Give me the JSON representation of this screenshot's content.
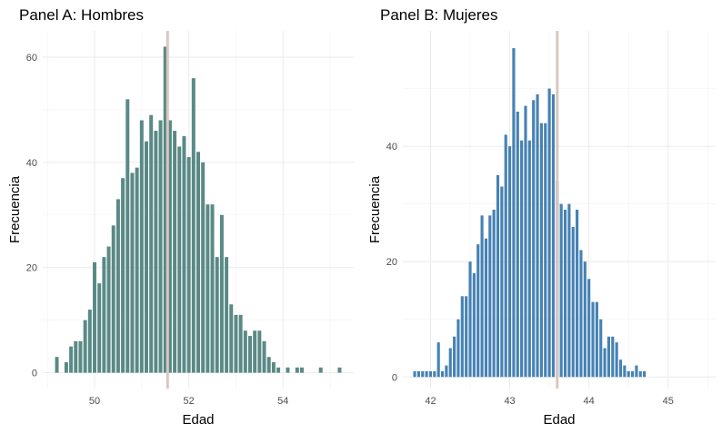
{
  "chart_data": [
    {
      "type": "bar",
      "title": "Panel A: Hombres",
      "xlabel": "Edad",
      "ylabel": "Frecuencia",
      "xlim": [
        48.9,
        55.5
      ],
      "ylim": [
        -3,
        65
      ],
      "xticks": [
        50,
        52,
        54
      ],
      "yticks": [
        0,
        20,
        40,
        60
      ],
      "grid": true,
      "bar_color": "#5a8a85",
      "reference_line": {
        "x": 51.55,
        "color": "#d9c7c0"
      },
      "bins": [
        {
          "x": 49.2,
          "count": 3
        },
        {
          "x": 49.3,
          "count": 0
        },
        {
          "x": 49.4,
          "count": 2
        },
        {
          "x": 49.5,
          "count": 5
        },
        {
          "x": 49.6,
          "count": 6
        },
        {
          "x": 49.7,
          "count": 6
        },
        {
          "x": 49.8,
          "count": 10
        },
        {
          "x": 49.9,
          "count": 12
        },
        {
          "x": 50.0,
          "count": 21
        },
        {
          "x": 50.1,
          "count": 17
        },
        {
          "x": 50.2,
          "count": 22
        },
        {
          "x": 50.3,
          "count": 24
        },
        {
          "x": 50.4,
          "count": 28
        },
        {
          "x": 50.5,
          "count": 33
        },
        {
          "x": 50.6,
          "count": 37
        },
        {
          "x": 50.7,
          "count": 52
        },
        {
          "x": 50.8,
          "count": 38
        },
        {
          "x": 50.9,
          "count": 39
        },
        {
          "x": 51.0,
          "count": 48
        },
        {
          "x": 51.1,
          "count": 44
        },
        {
          "x": 51.2,
          "count": 49
        },
        {
          "x": 51.3,
          "count": 46
        },
        {
          "x": 51.4,
          "count": 48
        },
        {
          "x": 51.5,
          "count": 62
        },
        {
          "x": 51.6,
          "count": 48
        },
        {
          "x": 51.7,
          "count": 46
        },
        {
          "x": 51.8,
          "count": 43
        },
        {
          "x": 51.9,
          "count": 45
        },
        {
          "x": 52.0,
          "count": 41
        },
        {
          "x": 52.1,
          "count": 56
        },
        {
          "x": 52.2,
          "count": 42
        },
        {
          "x": 52.3,
          "count": 40
        },
        {
          "x": 52.4,
          "count": 32
        },
        {
          "x": 52.5,
          "count": 32
        },
        {
          "x": 52.6,
          "count": 22
        },
        {
          "x": 52.7,
          "count": 30
        },
        {
          "x": 52.8,
          "count": 22
        },
        {
          "x": 52.9,
          "count": 13
        },
        {
          "x": 53.0,
          "count": 11
        },
        {
          "x": 53.1,
          "count": 11
        },
        {
          "x": 53.2,
          "count": 8
        },
        {
          "x": 53.3,
          "count": 7
        },
        {
          "x": 53.4,
          "count": 8
        },
        {
          "x": 53.5,
          "count": 8
        },
        {
          "x": 53.6,
          "count": 6
        },
        {
          "x": 53.7,
          "count": 3
        },
        {
          "x": 53.8,
          "count": 2
        },
        {
          "x": 53.9,
          "count": 1
        },
        {
          "x": 54.0,
          "count": 0
        },
        {
          "x": 54.1,
          "count": 1
        },
        {
          "x": 54.2,
          "count": 0
        },
        {
          "x": 54.3,
          "count": 1
        },
        {
          "x": 54.4,
          "count": 1
        },
        {
          "x": 54.5,
          "count": 0
        },
        {
          "x": 54.6,
          "count": 0
        },
        {
          "x": 54.7,
          "count": 0
        },
        {
          "x": 54.8,
          "count": 1
        },
        {
          "x": 54.9,
          "count": 0
        },
        {
          "x": 55.0,
          "count": 0
        },
        {
          "x": 55.1,
          "count": 0
        },
        {
          "x": 55.2,
          "count": 1
        }
      ]
    },
    {
      "type": "bar",
      "title": "Panel B: Mujeres",
      "xlabel": "Edad",
      "ylabel": "Frecuencia",
      "xlim": [
        41.65,
        45.6
      ],
      "ylim": [
        -2,
        60
      ],
      "xticks": [
        42,
        43,
        44,
        45
      ],
      "yticks": [
        0,
        20,
        40
      ],
      "grid": true,
      "bar_color": "#4682b4",
      "reference_line": {
        "x": 43.6,
        "color": "#d9c7c0"
      },
      "bins": [
        {
          "x": 41.8,
          "count": 1
        },
        {
          "x": 41.85,
          "count": 1
        },
        {
          "x": 41.9,
          "count": 1
        },
        {
          "x": 41.95,
          "count": 1
        },
        {
          "x": 42.0,
          "count": 1
        },
        {
          "x": 42.05,
          "count": 1
        },
        {
          "x": 42.1,
          "count": 6
        },
        {
          "x": 42.15,
          "count": 1
        },
        {
          "x": 42.2,
          "count": 2
        },
        {
          "x": 42.25,
          "count": 5
        },
        {
          "x": 42.3,
          "count": 7
        },
        {
          "x": 42.35,
          "count": 10
        },
        {
          "x": 42.4,
          "count": 14
        },
        {
          "x": 42.45,
          "count": 14
        },
        {
          "x": 42.5,
          "count": 20
        },
        {
          "x": 42.55,
          "count": 18
        },
        {
          "x": 42.6,
          "count": 23
        },
        {
          "x": 42.65,
          "count": 28
        },
        {
          "x": 42.7,
          "count": 24
        },
        {
          "x": 42.75,
          "count": 28
        },
        {
          "x": 42.8,
          "count": 29
        },
        {
          "x": 42.85,
          "count": 35
        },
        {
          "x": 42.9,
          "count": 33
        },
        {
          "x": 42.95,
          "count": 42
        },
        {
          "x": 43.0,
          "count": 40
        },
        {
          "x": 43.05,
          "count": 57
        },
        {
          "x": 43.1,
          "count": 46
        },
        {
          "x": 43.15,
          "count": 41
        },
        {
          "x": 43.2,
          "count": 47
        },
        {
          "x": 43.25,
          "count": 41
        },
        {
          "x": 43.3,
          "count": 48
        },
        {
          "x": 43.35,
          "count": 49
        },
        {
          "x": 43.4,
          "count": 44
        },
        {
          "x": 43.45,
          "count": 44
        },
        {
          "x": 43.5,
          "count": 50
        },
        {
          "x": 43.55,
          "count": 49
        },
        {
          "x": 43.6,
          "count": 34
        },
        {
          "x": 43.65,
          "count": 30
        },
        {
          "x": 43.7,
          "count": 29
        },
        {
          "x": 43.75,
          "count": 30
        },
        {
          "x": 43.8,
          "count": 26
        },
        {
          "x": 43.85,
          "count": 29
        },
        {
          "x": 43.9,
          "count": 22
        },
        {
          "x": 43.95,
          "count": 20
        },
        {
          "x": 44.0,
          "count": 17
        },
        {
          "x": 44.05,
          "count": 13
        },
        {
          "x": 44.1,
          "count": 13
        },
        {
          "x": 44.15,
          "count": 10
        },
        {
          "x": 44.2,
          "count": 5
        },
        {
          "x": 44.25,
          "count": 7
        },
        {
          "x": 44.3,
          "count": 7
        },
        {
          "x": 44.35,
          "count": 6
        },
        {
          "x": 44.4,
          "count": 3
        },
        {
          "x": 44.45,
          "count": 2
        },
        {
          "x": 44.5,
          "count": 1
        },
        {
          "x": 44.55,
          "count": 1
        },
        {
          "x": 44.6,
          "count": 2
        },
        {
          "x": 44.65,
          "count": 1
        },
        {
          "x": 44.7,
          "count": 1
        }
      ]
    }
  ]
}
